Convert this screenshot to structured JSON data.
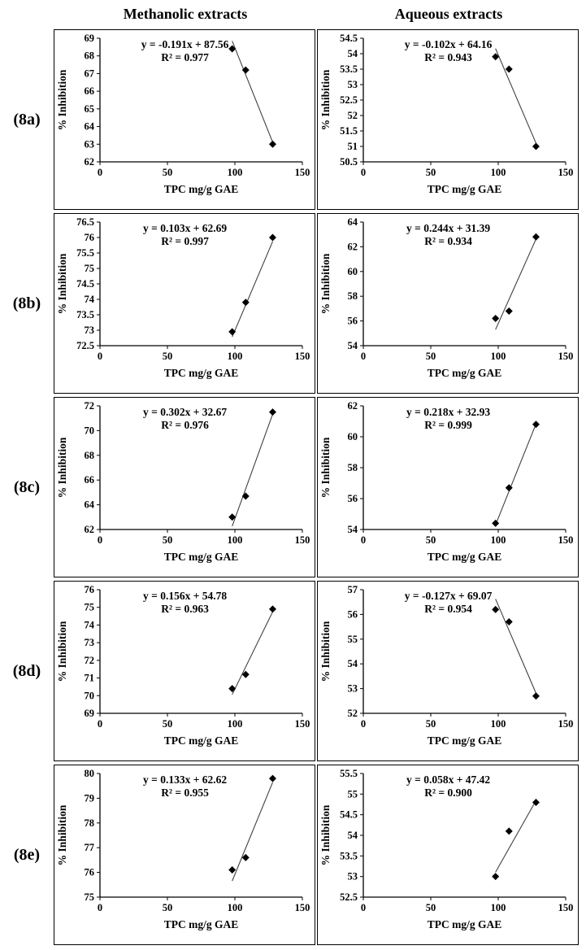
{
  "page": {
    "column_headers": [
      "Methanolic extracts",
      "Aqueous extracts"
    ],
    "row_labels": [
      "(8a)",
      "(8b)",
      "(8c)",
      "(8d)",
      "(8e)"
    ]
  },
  "colors": {
    "axis": "#000000",
    "marker": "#000000",
    "trendline": "#404040",
    "text": "#000000"
  },
  "chart_data": [
    {
      "id": "8a-methanolic",
      "row": "(8a)",
      "column": "Methanolic extracts",
      "type": "scatter",
      "equation": "y = -0.191x + 87.56",
      "r2_label": "R² = 0.977",
      "slope": -0.191,
      "intercept": 87.56,
      "x": [
        98,
        108,
        128
      ],
      "y": [
        68.4,
        67.2,
        63.0
      ],
      "xlim": [
        0,
        150
      ],
      "xticks": [
        0,
        50,
        100,
        150
      ],
      "ylim": [
        62,
        69
      ],
      "yticks": [
        62,
        63,
        64,
        65,
        66,
        67,
        68,
        69
      ],
      "xlabel": "TPC mg/g GAE",
      "ylabel": "% Inhibition"
    },
    {
      "id": "8a-aqueous",
      "row": "(8a)",
      "column": "Aqueous extracts",
      "type": "scatter",
      "equation": "y = -0.102x + 64.16",
      "r2_label": "R² = 0.943",
      "slope": -0.102,
      "intercept": 64.16,
      "x": [
        98,
        108,
        128
      ],
      "y": [
        53.9,
        53.5,
        51.0
      ],
      "xlim": [
        0,
        150
      ],
      "xticks": [
        0,
        50,
        100,
        150
      ],
      "ylim": [
        50.5,
        54.5
      ],
      "yticks": [
        50.5,
        51,
        51.5,
        52,
        52.5,
        53,
        53.5,
        54,
        54.5
      ],
      "xlabel": "TPC mg/g GAE",
      "ylabel": "% Inhibition"
    },
    {
      "id": "8b-methanolic",
      "row": "(8b)",
      "column": "Methanolic extracts",
      "type": "scatter",
      "equation": "y = 0.103x + 62.69",
      "r2_label": "R² = 0.997",
      "slope": 0.103,
      "intercept": 62.69,
      "x": [
        98,
        108,
        128
      ],
      "y": [
        72.95,
        73.9,
        76.0
      ],
      "xlim": [
        0,
        150
      ],
      "xticks": [
        0,
        50,
        100,
        150
      ],
      "ylim": [
        72.5,
        76.5
      ],
      "yticks": [
        72.5,
        73,
        73.5,
        74,
        74.5,
        75,
        75.5,
        76,
        76.5
      ],
      "xlabel": "TPC mg/g GAE",
      "ylabel": "% Inhibition"
    },
    {
      "id": "8b-aqueous",
      "row": "(8b)",
      "column": "Aqueous extracts",
      "type": "scatter",
      "equation": "y = 0.244x + 31.39",
      "r2_label": "R² = 0.934",
      "slope": 0.244,
      "intercept": 31.39,
      "x": [
        98,
        108,
        128
      ],
      "y": [
        56.2,
        56.8,
        62.8
      ],
      "xlim": [
        0,
        150
      ],
      "xticks": [
        0,
        50,
        100,
        150
      ],
      "ylim": [
        54,
        64
      ],
      "yticks": [
        54,
        56,
        58,
        60,
        62,
        64
      ],
      "xlabel": "TPC mg/g GAE",
      "ylabel": "% Inhibition"
    },
    {
      "id": "8c-methanolic",
      "row": "(8c)",
      "column": "Methanolic extracts",
      "type": "scatter",
      "equation": "y = 0.302x + 32.67",
      "r2_label": "R² = 0.976",
      "slope": 0.302,
      "intercept": 32.67,
      "x": [
        98,
        108,
        128
      ],
      "y": [
        63.0,
        64.7,
        71.5
      ],
      "xlim": [
        0,
        150
      ],
      "xticks": [
        0,
        50,
        100,
        150
      ],
      "ylim": [
        62,
        72
      ],
      "yticks": [
        62,
        64,
        66,
        68,
        70,
        72
      ],
      "xlabel": "TPC mg/g GAE",
      "ylabel": "% Inhibition"
    },
    {
      "id": "8c-aqueous",
      "row": "(8c)",
      "column": "Aqueous extracts",
      "type": "scatter",
      "equation": "y = 0.218x + 32.93",
      "r2_label": "R² = 0.999",
      "slope": 0.218,
      "intercept": 32.93,
      "x": [
        98,
        108,
        128
      ],
      "y": [
        54.4,
        56.7,
        60.8
      ],
      "xlim": [
        0,
        150
      ],
      "xticks": [
        0,
        50,
        100,
        150
      ],
      "ylim": [
        54,
        62
      ],
      "yticks": [
        54,
        56,
        58,
        60,
        62
      ],
      "xlabel": "TPC mg/g GAE",
      "ylabel": "% Inhibition"
    },
    {
      "id": "8d-methanolic",
      "row": "(8d)",
      "column": "Methanolic extracts",
      "type": "scatter",
      "equation": "y = 0.156x + 54.78",
      "r2_label": "R² = 0.963",
      "slope": 0.156,
      "intercept": 54.78,
      "x": [
        98,
        108,
        128
      ],
      "y": [
        70.4,
        71.2,
        74.9
      ],
      "xlim": [
        0,
        150
      ],
      "xticks": [
        0,
        50,
        100,
        150
      ],
      "ylim": [
        69,
        76
      ],
      "yticks": [
        69,
        70,
        71,
        72,
        73,
        74,
        75,
        76
      ],
      "xlabel": "TPC mg/g GAE",
      "ylabel": "% Inhibition"
    },
    {
      "id": "8d-aqueous",
      "row": "(8d)",
      "column": "Aqueous extracts",
      "type": "scatter",
      "equation": "y = -0.127x + 69.07",
      "r2_label": "R² = 0.954",
      "slope": -0.127,
      "intercept": 69.07,
      "x": [
        98,
        108,
        128
      ],
      "y": [
        56.2,
        55.7,
        52.7
      ],
      "xlim": [
        0,
        150
      ],
      "xticks": [
        0,
        50,
        100,
        150
      ],
      "ylim": [
        52,
        57
      ],
      "yticks": [
        52,
        53,
        54,
        55,
        56,
        57
      ],
      "xlabel": "TPC mg/g GAE",
      "ylabel": "% Inhibition"
    },
    {
      "id": "8e-methanolic",
      "row": "(8e)",
      "column": "Methanolic extracts",
      "type": "scatter",
      "equation": "y = 0.133x + 62.62",
      "r2_label": "R² = 0.955",
      "slope": 0.133,
      "intercept": 62.62,
      "x": [
        98,
        108,
        128
      ],
      "y": [
        76.1,
        76.6,
        79.8
      ],
      "xlim": [
        0,
        150
      ],
      "xticks": [
        0,
        50,
        100,
        150
      ],
      "ylim": [
        75,
        80
      ],
      "yticks": [
        75,
        76,
        77,
        78,
        79,
        80
      ],
      "xlabel": "TPC mg/g GAE",
      "ylabel": "% Inhibition"
    },
    {
      "id": "8e-aqueous",
      "row": "(8e)",
      "column": "Aqueous extracts",
      "type": "scatter",
      "equation": "y = 0.058x + 47.42",
      "r2_label": "R² = 0.900",
      "slope": 0.058,
      "intercept": 47.42,
      "x": [
        98,
        108,
        128
      ],
      "y": [
        53.0,
        54.1,
        54.8
      ],
      "xlim": [
        0,
        150
      ],
      "xticks": [
        0,
        50,
        100,
        150
      ],
      "ylim": [
        52.5,
        55.5
      ],
      "yticks": [
        52.5,
        53,
        53.5,
        54,
        54.5,
        55,
        55.5
      ],
      "xlabel": "TPC mg/g GAE",
      "ylabel": "% Inhibition"
    }
  ]
}
